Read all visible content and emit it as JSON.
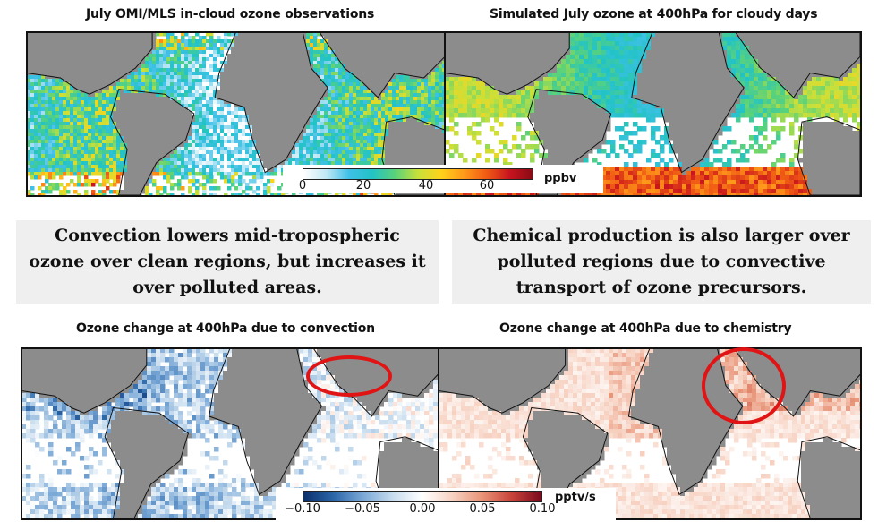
{
  "panels": {
    "top_left": {
      "title": "July OMI/MLS in-cloud ozone observations"
    },
    "top_right": {
      "title": "Simulated July ozone at 400hPa for cloudy days"
    },
    "bottom_left": {
      "title": "Ozone change at 400hPa due to convection"
    },
    "bottom_right": {
      "title": "Ozone change at 400hPa due to chemistry"
    }
  },
  "captions": {
    "left": "Convection lowers mid-tropospheric ozone over clean regions, but increases it over polluted areas.",
    "right": "Chemical production is also larger over polluted regions due to convective transport of ozone precursors."
  },
  "colorbars": {
    "ozone": {
      "ticks": [
        "0",
        "20",
        "40",
        "60"
      ],
      "unit": "ppbv",
      "colors": [
        "#ffffff",
        "#bfe8f5",
        "#3fc0e6",
        "#22c3c6",
        "#5ad27a",
        "#c8e03a",
        "#ffd21a",
        "#ff9a1a",
        "#f05a14",
        "#c8141e",
        "#8a0a14"
      ]
    },
    "change": {
      "ticks": [
        "−0.10",
        "−0.05",
        "0.00",
        "0.05",
        "0.10"
      ],
      "unit": "pptv/s",
      "colors": [
        "#0b2f6b",
        "#2b66a8",
        "#7aa8d6",
        "#c7dcee",
        "#ffffff",
        "#f7d2c2",
        "#e89478",
        "#c8433a",
        "#7a0a1e"
      ]
    }
  },
  "colors": {
    "land": "#8c8c8c",
    "highlight": "#e01414"
  }
}
